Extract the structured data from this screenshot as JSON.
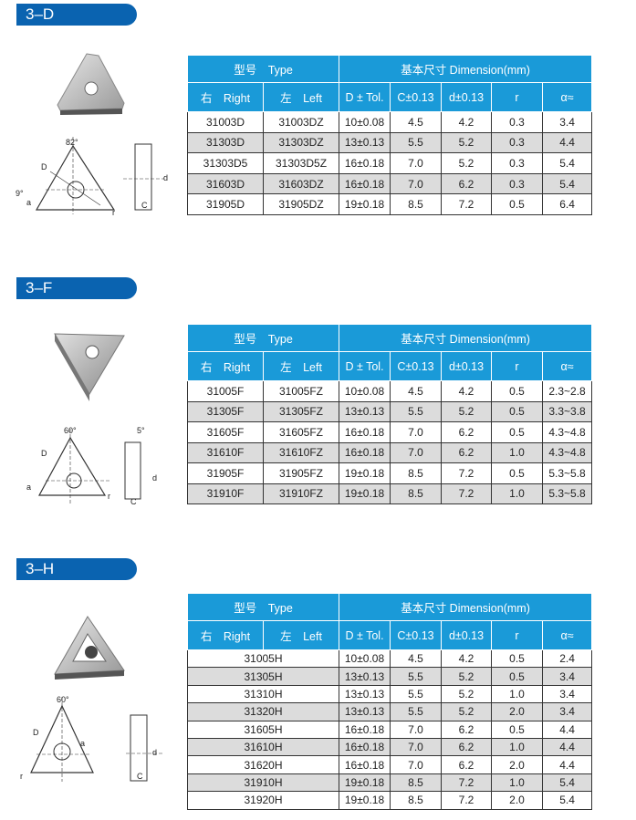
{
  "header": {
    "type": "型号　Type",
    "dimension": "基本尺寸  Dimension(mm)",
    "right": "右　Right",
    "left": "左　Left",
    "cols": [
      "D ± Tol.",
      "C±0.13",
      "d±0.13",
      "r",
      "α≈"
    ]
  },
  "colors": {
    "tab": "#0a63b0",
    "table_header": "#1a9ad8",
    "row_alt": "#dcdcdc"
  },
  "sections": [
    {
      "title": "3–D",
      "diagram_labels": {
        "angle": "82°",
        "angle2": "9°",
        "D": "D",
        "d": "d",
        "C": "C",
        "r": "r",
        "a": "a"
      },
      "rows": [
        [
          "31003D",
          "31003DZ",
          "10±0.08",
          "4.5",
          "4.2",
          "0.3",
          "3.4"
        ],
        [
          "31303D",
          "31303DZ",
          "13±0.13",
          "5.5",
          "5.2",
          "0.3",
          "4.4"
        ],
        [
          "31303D5",
          "31303D5Z",
          "16±0.18",
          "7.0",
          "5.2",
          "0.3",
          "5.4"
        ],
        [
          "31603D",
          "31603DZ",
          "16±0.18",
          "7.0",
          "6.2",
          "0.3",
          "5.4"
        ],
        [
          "31905D",
          "31905DZ",
          "19±0.18",
          "8.5",
          "7.2",
          "0.5",
          "6.4"
        ]
      ]
    },
    {
      "title": "3–F",
      "diagram_labels": {
        "angle": "60°",
        "angle2": "5°",
        "D": "D",
        "d": "d",
        "C": "C",
        "r": "r",
        "a": "a"
      },
      "rows": [
        [
          "31005F",
          "31005FZ",
          "10±0.08",
          "4.5",
          "4.2",
          "0.5",
          "2.3~2.8"
        ],
        [
          "31305F",
          "31305FZ",
          "13±0.13",
          "5.5",
          "5.2",
          "0.5",
          "3.3~3.8"
        ],
        [
          "31605F",
          "31605FZ",
          "16±0.18",
          "7.0",
          "6.2",
          "0.5",
          "4.3~4.8"
        ],
        [
          "31610F",
          "31610FZ",
          "16±0.18",
          "7.0",
          "6.2",
          "1.0",
          "4.3~4.8"
        ],
        [
          "31905F",
          "31905FZ",
          "19±0.18",
          "8.5",
          "7.2",
          "0.5",
          "5.3~5.8"
        ],
        [
          "31910F",
          "31910FZ",
          "19±0.18",
          "8.5",
          "7.2",
          "1.0",
          "5.3~5.8"
        ]
      ]
    },
    {
      "title": "3–H",
      "diagram_labels": {
        "angle": "60°",
        "D": "D",
        "d": "d",
        "C": "C",
        "r": "r",
        "a": "a"
      },
      "rows": [
        [
          "31005H",
          "10±0.08",
          "4.5",
          "4.2",
          "0.5",
          "2.4"
        ],
        [
          "31305H",
          "13±0.13",
          "5.5",
          "5.2",
          "0.5",
          "3.4"
        ],
        [
          "31310H",
          "13±0.13",
          "5.5",
          "5.2",
          "1.0",
          "3.4"
        ],
        [
          "31320H",
          "13±0.13",
          "5.5",
          "5.2",
          "2.0",
          "3.4"
        ],
        [
          "31605H",
          "16±0.18",
          "7.0",
          "6.2",
          "0.5",
          "4.4"
        ],
        [
          "31610H",
          "16±0.18",
          "7.0",
          "6.2",
          "1.0",
          "4.4"
        ],
        [
          "31620H",
          "16±0.18",
          "7.0",
          "6.2",
          "2.0",
          "4.4"
        ],
        [
          "31910H",
          "19±0.18",
          "8.5",
          "7.2",
          "1.0",
          "5.4"
        ],
        [
          "31920H",
          "19±0.18",
          "8.5",
          "7.2",
          "2.0",
          "5.4"
        ]
      ]
    }
  ]
}
